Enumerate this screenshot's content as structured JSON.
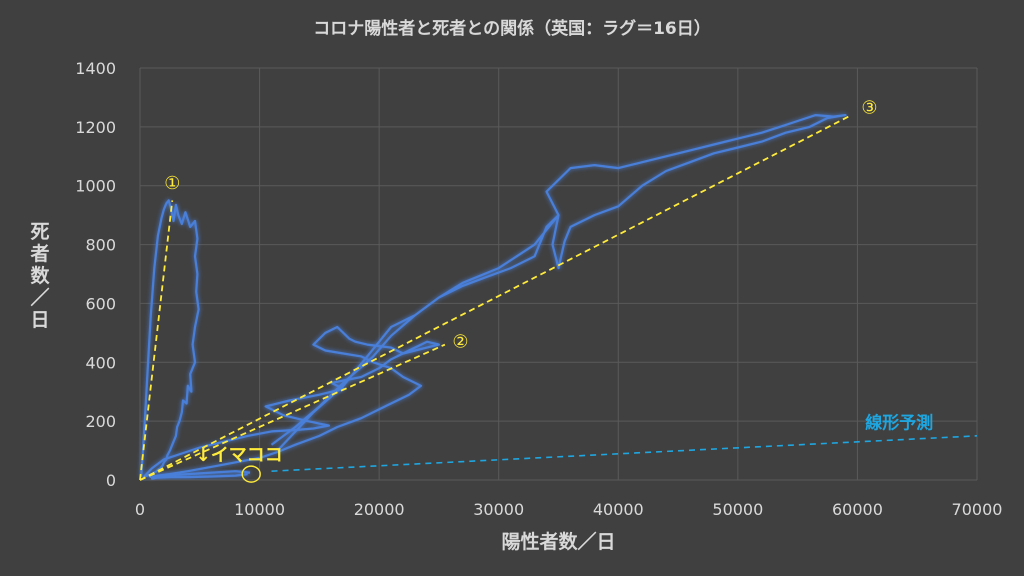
{
  "chart_data": {
    "type": "line",
    "title": "コロナ陽性者と死者との関係（英国：ラグ＝16日）",
    "xlabel": "陽性者数／日",
    "ylabel": "死者数／日",
    "xlim": [
      0,
      70000
    ],
    "ylim": [
      0,
      1400
    ],
    "xticks": [
      0,
      10000,
      20000,
      30000,
      40000,
      50000,
      60000,
      70000
    ],
    "xtick_labels": [
      "0",
      "10000",
      "20000",
      "30000",
      "40000",
      "50000",
      "60000",
      "70000"
    ],
    "yticks": [
      0,
      200,
      400,
      600,
      800,
      1000,
      1200,
      1400
    ],
    "ytick_labels": [
      "0",
      "200",
      "400",
      "600",
      "800",
      "1000",
      "1200",
      "1400"
    ],
    "grid": true,
    "colors": {
      "background": "#404040",
      "grid": "#5a5a5a",
      "series": "#4a7fd9",
      "glow": "#3a6fd0",
      "guide": "#ffeb3b",
      "forecast": "#1fa6e0"
    },
    "series": [
      {
        "x": [
          100,
          400,
          700,
          900,
          1200,
          1500,
          1800,
          2000,
          2200,
          2400,
          2600,
          2800,
          3000,
          3200,
          3500,
          3800,
          4200,
          4600,
          4800,
          4600,
          4800,
          4700,
          4900,
          4600,
          4400,
          4600,
          4200,
          4300,
          4000,
          3900,
          3600,
          3500,
          3300,
          3100,
          3000,
          2800,
          2600,
          2500,
          2300,
          2200,
          2000,
          1900,
          1700,
          1500,
          1400,
          1200,
          1000,
          800,
          600,
          400,
          300
        ],
        "y": [
          10,
          200,
          420,
          560,
          720,
          830,
          890,
          920,
          940,
          950,
          920,
          880,
          935,
          900,
          870,
          910,
          860,
          880,
          820,
          760,
          700,
          640,
          580,
          520,
          460,
          400,
          360,
          300,
          320,
          260,
          270,
          230,
          200,
          180,
          150,
          130,
          110,
          100,
          85,
          70,
          60,
          50,
          40,
          35,
          30,
          25,
          20,
          18,
          15,
          12,
          10
        ]
      },
      {
        "x": [
          300,
          1000,
          2000,
          3500,
          5000,
          7000,
          9000,
          11000,
          13000,
          14500,
          15800,
          14000,
          12000,
          10500,
          12500,
          15000,
          17000,
          16000,
          18500,
          20000,
          21000,
          22500,
          24000,
          25000,
          23000,
          22000,
          21000,
          19000,
          18000,
          17500,
          16500,
          15500,
          14500,
          15500,
          17000,
          18500,
          19500,
          21000,
          22000,
          23500,
          22500,
          20500,
          18500,
          16500,
          15000,
          13000,
          11500,
          10000,
          8000,
          6000,
          4000,
          2500,
          1500,
          800
        ],
        "y": [
          10,
          40,
          70,
          90,
          110,
          130,
          150,
          165,
          170,
          175,
          185,
          200,
          220,
          250,
          270,
          290,
          310,
          330,
          350,
          380,
          410,
          440,
          470,
          460,
          440,
          430,
          450,
          460,
          470,
          480,
          520,
          500,
          460,
          440,
          430,
          420,
          400,
          380,
          350,
          320,
          290,
          250,
          210,
          180,
          150,
          120,
          95,
          75,
          60,
          45,
          30,
          20,
          15,
          10
        ]
      },
      {
        "x": [
          11500,
          14500,
          17000,
          19000,
          21000,
          23000,
          25000,
          27000,
          30000,
          33000,
          35000,
          34000,
          36000,
          38000,
          40000,
          42000,
          44000,
          46000,
          48000,
          50000,
          52000,
          53500,
          55000,
          56500,
          58000,
          59000,
          57500,
          56000,
          54000,
          52000,
          50000,
          48000,
          46000,
          44000,
          42000,
          40000,
          38000,
          36000,
          35500,
          35000,
          34500,
          35000,
          34000,
          33000,
          31000,
          29000,
          27000,
          25000,
          23000,
          21000,
          19500,
          17000,
          15000,
          13000,
          11000
        ],
        "y": [
          100,
          230,
          320,
          420,
          520,
          560,
          620,
          670,
          720,
          800,
          900,
          980,
          1060,
          1070,
          1060,
          1080,
          1100,
          1120,
          1140,
          1160,
          1180,
          1200,
          1220,
          1240,
          1235,
          1240,
          1230,
          1200,
          1180,
          1150,
          1130,
          1110,
          1080,
          1050,
          1000,
          930,
          900,
          860,
          810,
          720,
          800,
          900,
          860,
          760,
          720,
          690,
          660,
          620,
          560,
          490,
          420,
          330,
          250,
          180,
          120
        ]
      },
      {
        "x": [
          9000,
          8000,
          6000,
          4000,
          2500,
          1500,
          1000,
          2000,
          4000,
          6000,
          8000,
          9200
        ],
        "y": [
          20,
          15,
          12,
          10,
          10,
          8,
          5,
          15,
          20,
          25,
          30,
          25
        ]
      }
    ],
    "guide_lines": [
      {
        "x": [
          0,
          2700
        ],
        "y": [
          0,
          950
        ]
      },
      {
        "x": [
          0,
          25500
        ],
        "y": [
          0,
          460
        ]
      },
      {
        "x": [
          0,
          59500
        ],
        "y": [
          0,
          1240
        ]
      }
    ],
    "forecast_line": {
      "x": [
        11000,
        70000
      ],
      "y": [
        30,
        150
      ]
    },
    "annotations": [
      {
        "text": "①",
        "x": 2700,
        "y": 1010
      },
      {
        "text": "②",
        "x": 26800,
        "y": 470
      },
      {
        "text": "③",
        "x": 61000,
        "y": 1265
      },
      {
        "text": "↓イマココ",
        "x": 8300,
        "y": 85
      },
      {
        "text": "線形予測",
        "x": 63500,
        "y": 195
      }
    ],
    "current_point": {
      "x": 9300,
      "y": 20
    }
  }
}
